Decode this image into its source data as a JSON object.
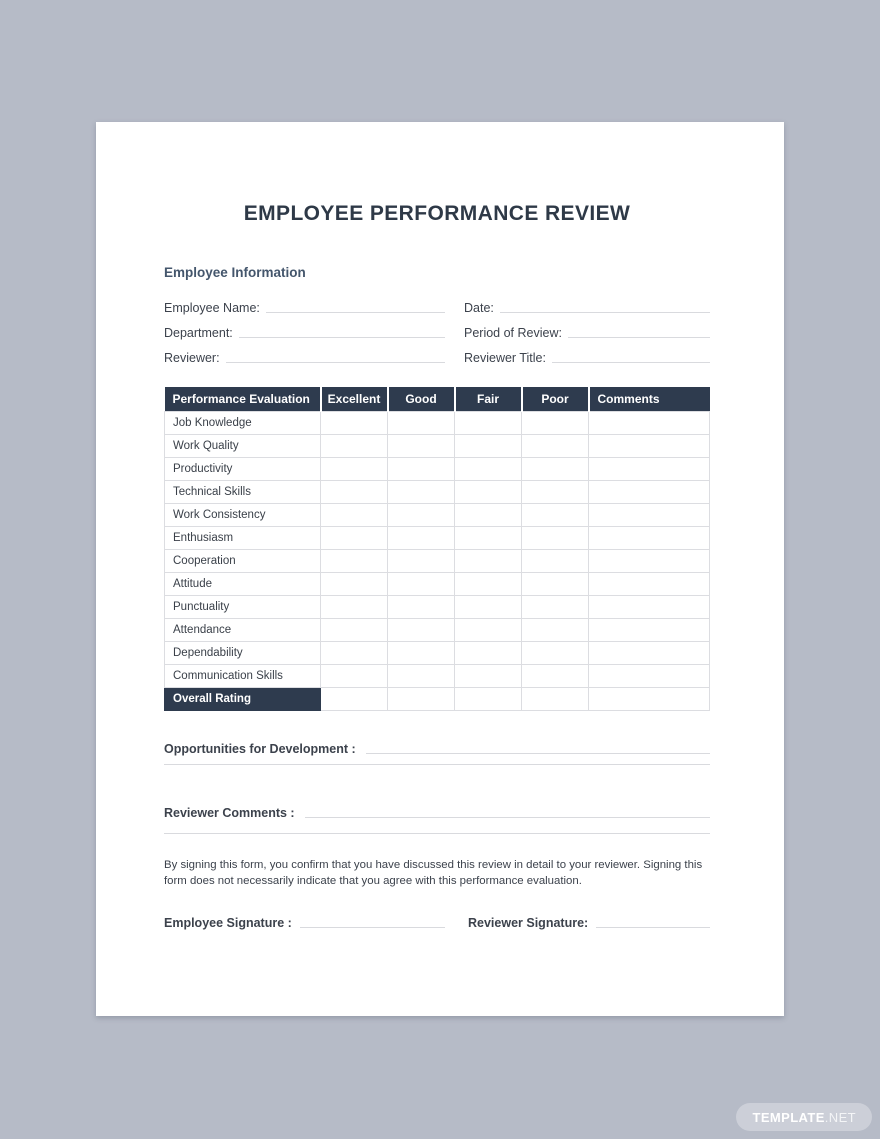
{
  "title": "EMPLOYEE PERFORMANCE REVIEW",
  "employee_info": {
    "heading": "Employee Information",
    "fields": [
      {
        "label": "Employee Name:",
        "value": ""
      },
      {
        "label": "Date:",
        "value": ""
      },
      {
        "label": "Department:",
        "value": ""
      },
      {
        "label": "Period of Review:",
        "value": ""
      },
      {
        "label": "Reviewer:",
        "value": ""
      },
      {
        "label": "Reviewer Title:",
        "value": ""
      }
    ]
  },
  "evaluation_table": {
    "headers": [
      "Performance Evaluation",
      "Excellent",
      "Good",
      "Fair",
      "Poor",
      "Comments"
    ],
    "criteria": [
      "Job Knowledge",
      "Work Quality",
      "Productivity",
      "Technical Skills",
      "Work Consistency",
      "Enthusiasm",
      "Cooperation",
      "Attitude",
      "Punctuality",
      "Attendance",
      "Dependability",
      "Communication Skills"
    ],
    "overall_label": "Overall Rating"
  },
  "comments": {
    "opportunities_label": "Opportunities for Development :",
    "reviewer_label": "Reviewer Comments :"
  },
  "signature": {
    "disclaimer": "By signing this form, you confirm that you have discussed this review in detail to your reviewer. Signing this form does not necessarily indicate that you agree with this performance evaluation.",
    "employee_label": "Employee Signature :",
    "reviewer_label": "Reviewer Signature:"
  },
  "watermark": {
    "bold": "TEMPLATE",
    "rest": ".NET"
  },
  "colors": {
    "canvas_background": "#b6bbc7",
    "page_background": "#ffffff",
    "table_header_navy": "#2e3b4e",
    "section_heading": "#44566c",
    "body_text": "#3c424c",
    "line_gray": "#d9dade"
  }
}
